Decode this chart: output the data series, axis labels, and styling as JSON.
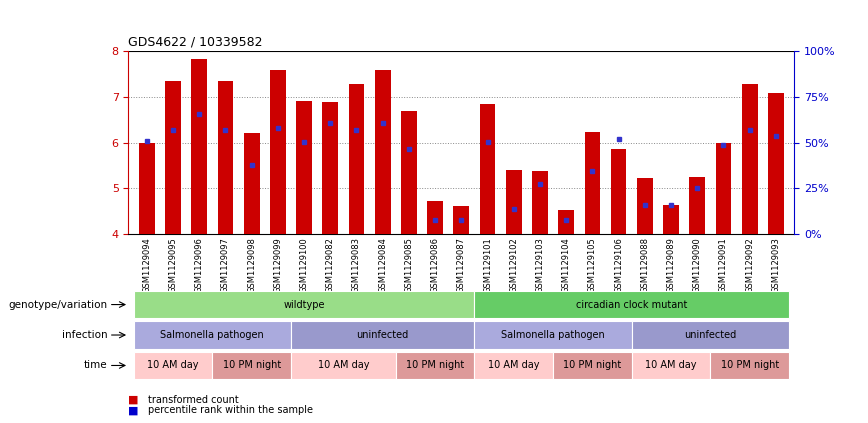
{
  "title": "GDS4622 / 10339582",
  "samples": [
    "GSM1129094",
    "GSM1129095",
    "GSM1129096",
    "GSM1129097",
    "GSM1129098",
    "GSM1129099",
    "GSM1129100",
    "GSM1129082",
    "GSM1129083",
    "GSM1129084",
    "GSM1129085",
    "GSM1129086",
    "GSM1129087",
    "GSM1129101",
    "GSM1129102",
    "GSM1129103",
    "GSM1129104",
    "GSM1129105",
    "GSM1129106",
    "GSM1129088",
    "GSM1129089",
    "GSM1129090",
    "GSM1129091",
    "GSM1129092",
    "GSM1129093"
  ],
  "bar_heights": [
    6.0,
    7.35,
    7.82,
    7.35,
    6.2,
    7.58,
    6.9,
    6.88,
    7.28,
    7.58,
    6.68,
    4.72,
    4.62,
    6.83,
    5.4,
    5.38,
    4.53,
    6.22,
    5.85,
    5.23,
    4.65,
    5.25,
    6.0,
    7.28,
    7.08
  ],
  "blue_dot_y": [
    6.03,
    6.28,
    6.62,
    6.28,
    5.5,
    6.32,
    6.02,
    6.42,
    6.28,
    6.42,
    5.85,
    4.32,
    4.32,
    6.02,
    4.55,
    5.1,
    4.32,
    5.38,
    6.08,
    4.65,
    4.65,
    5.0,
    5.95,
    6.28,
    6.15
  ],
  "ylim": [
    4.0,
    8.0
  ],
  "yticks_left": [
    4,
    5,
    6,
    7,
    8
  ],
  "yticks_right": [
    0,
    25,
    50,
    75,
    100
  ],
  "bar_color": "#cc0000",
  "dot_color": "#3333cc",
  "bar_width": 0.6,
  "genotype_groups": [
    {
      "label": "wildtype",
      "start": 0,
      "end": 12,
      "color": "#99dd88"
    },
    {
      "label": "circadian clock mutant",
      "start": 13,
      "end": 24,
      "color": "#66cc66"
    }
  ],
  "infection_groups": [
    {
      "label": "Salmonella pathogen",
      "start": 0,
      "end": 5,
      "color": "#aaaadd"
    },
    {
      "label": "uninfected",
      "start": 6,
      "end": 12,
      "color": "#9999cc"
    },
    {
      "label": "Salmonella pathogen",
      "start": 13,
      "end": 18,
      "color": "#aaaadd"
    },
    {
      "label": "uninfected",
      "start": 19,
      "end": 24,
      "color": "#9999cc"
    }
  ],
  "time_groups": [
    {
      "label": "10 AM day",
      "start": 0,
      "end": 2,
      "color": "#ffcccc"
    },
    {
      "label": "10 PM night",
      "start": 3,
      "end": 5,
      "color": "#dd9999"
    },
    {
      "label": "10 AM day",
      "start": 6,
      "end": 9,
      "color": "#ffcccc"
    },
    {
      "label": "10 PM night",
      "start": 10,
      "end": 12,
      "color": "#dd9999"
    },
    {
      "label": "10 AM day",
      "start": 13,
      "end": 15,
      "color": "#ffcccc"
    },
    {
      "label": "10 PM night",
      "start": 16,
      "end": 18,
      "color": "#dd9999"
    },
    {
      "label": "10 AM day",
      "start": 19,
      "end": 21,
      "color": "#ffcccc"
    },
    {
      "label": "10 PM night",
      "start": 22,
      "end": 24,
      "color": "#dd9999"
    }
  ],
  "background_color": "#ffffff",
  "grid_color": "#888888",
  "axis_left_color": "#cc0000",
  "axis_right_color": "#0000cc",
  "legend_items": [
    {
      "label": "transformed count",
      "color": "#cc0000"
    },
    {
      "label": "percentile rank within the sample",
      "color": "#0000cc"
    }
  ]
}
